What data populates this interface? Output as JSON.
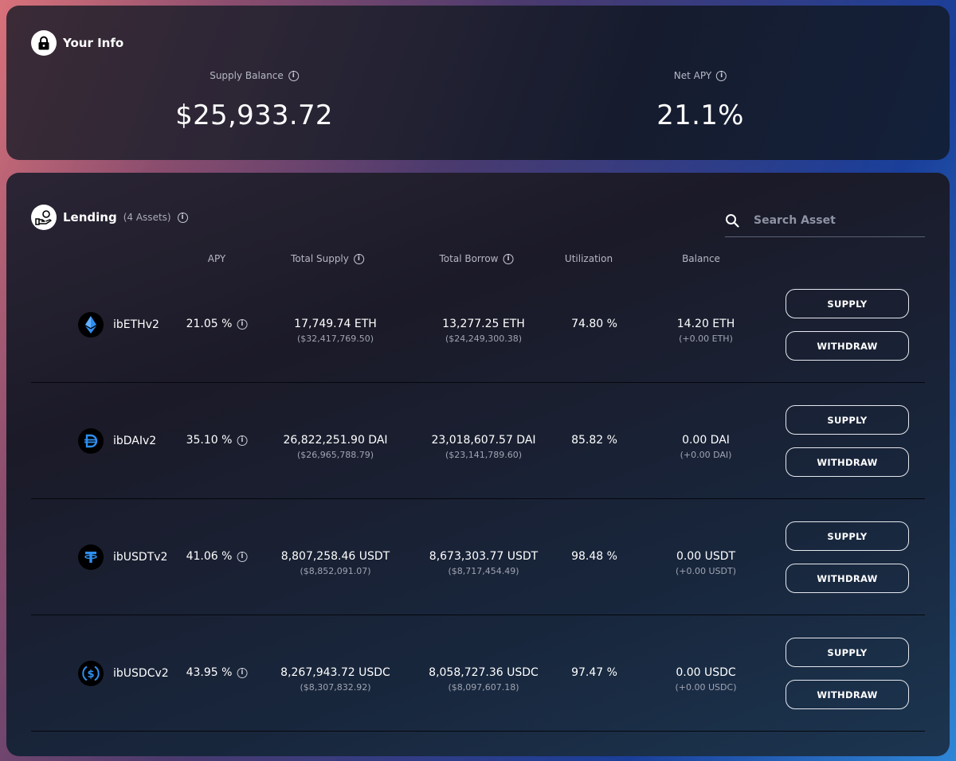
{
  "info": {
    "title": "Your Info",
    "supply_balance_label": "Supply Balance",
    "supply_balance_value": "$25,933.72",
    "net_apy_label": "Net APY",
    "net_apy_value": "21.1%"
  },
  "lending": {
    "title": "Lending",
    "asset_count": "(4 Assets)",
    "search_placeholder": "Search Asset",
    "columns": {
      "apy": "APY",
      "total_supply": "Total Supply",
      "total_borrow": "Total Borrow",
      "utilization": "Utilization",
      "balance": "Balance"
    },
    "supply_label": "SUPPLY",
    "withdraw_label": "WITHDRAW",
    "rows": [
      {
        "name": "ibETHv2",
        "icon": "eth-icon",
        "apy": "21.05 %",
        "supply": "17,749.74 ETH",
        "supply_usd": "($32,417,769.50)",
        "borrow": "13,277.25 ETH",
        "borrow_usd": "($24,249,300.38)",
        "utilization": "74.80 %",
        "balance": "14.20 ETH",
        "balance_change": "(+0.00 ETH)"
      },
      {
        "name": "ibDAIv2",
        "icon": "dai-icon",
        "apy": "35.10 %",
        "supply": "26,822,251.90 DAI",
        "supply_usd": "($26,965,788.79)",
        "borrow": "23,018,607.57 DAI",
        "borrow_usd": "($23,141,789.60)",
        "utilization": "85.82 %",
        "balance": "0.00 DAI",
        "balance_change": "(+0.00 DAI)"
      },
      {
        "name": "ibUSDTv2",
        "icon": "usdt-icon",
        "apy": "41.06 %",
        "supply": "8,807,258.46 USDT",
        "supply_usd": "($8,852,091.07)",
        "borrow": "8,673,303.77 USDT",
        "borrow_usd": "($8,717,454.49)",
        "utilization": "98.48 %",
        "balance": "0.00 USDT",
        "balance_change": "(+0.00 USDT)"
      },
      {
        "name": "ibUSDCv2",
        "icon": "usdc-icon",
        "apy": "43.95 %",
        "supply": "8,267,943.72 USDC",
        "supply_usd": "($8,307,832.92)",
        "borrow": "8,058,727.36 USDC",
        "borrow_usd": "($8,097,607.18)",
        "utilization": "97.47 %",
        "balance": "0.00 USDC",
        "balance_change": "(+0.00 USDC)"
      }
    ]
  },
  "colors": {
    "accent_blue": "#2f8ff0",
    "card_dark": "#161c2e"
  }
}
